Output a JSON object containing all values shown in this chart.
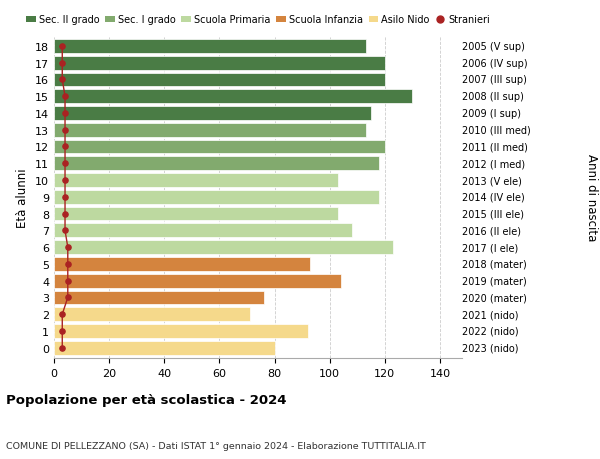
{
  "ages": [
    18,
    17,
    16,
    15,
    14,
    13,
    12,
    11,
    10,
    9,
    8,
    7,
    6,
    5,
    4,
    3,
    2,
    1,
    0
  ],
  "years": [
    "2005 (V sup)",
    "2006 (IV sup)",
    "2007 (III sup)",
    "2008 (II sup)",
    "2009 (I sup)",
    "2010 (III med)",
    "2011 (II med)",
    "2012 (I med)",
    "2013 (V ele)",
    "2014 (IV ele)",
    "2015 (III ele)",
    "2016 (II ele)",
    "2017 (I ele)",
    "2018 (mater)",
    "2019 (mater)",
    "2020 (mater)",
    "2021 (nido)",
    "2022 (nido)",
    "2023 (nido)"
  ],
  "values": [
    113,
    120,
    120,
    130,
    115,
    113,
    120,
    118,
    103,
    118,
    103,
    108,
    123,
    93,
    104,
    76,
    71,
    92,
    80
  ],
  "stranieri": [
    3,
    3,
    3,
    4,
    4,
    4,
    4,
    4,
    4,
    4,
    4,
    4,
    5,
    5,
    5,
    5,
    3,
    3,
    3
  ],
  "colors": {
    "sec2": "#4a7c45",
    "sec1": "#82aa6e",
    "primaria": "#bdd9a0",
    "infanzia": "#d4843e",
    "nido": "#f5d98b",
    "stranieri": "#aa2222"
  },
  "bar_colors": [
    "#4a7c45",
    "#4a7c45",
    "#4a7c45",
    "#4a7c45",
    "#4a7c45",
    "#82aa6e",
    "#82aa6e",
    "#82aa6e",
    "#bdd9a0",
    "#bdd9a0",
    "#bdd9a0",
    "#bdd9a0",
    "#bdd9a0",
    "#d4843e",
    "#d4843e",
    "#d4843e",
    "#f5d98b",
    "#f5d98b",
    "#f5d98b"
  ],
  "legend_labels": [
    "Sec. II grado",
    "Sec. I grado",
    "Scuola Primaria",
    "Scuola Infanzia",
    "Asilo Nido",
    "Stranieri"
  ],
  "legend_colors": [
    "#4a7c45",
    "#82aa6e",
    "#bdd9a0",
    "#d4843e",
    "#f5d98b",
    "#aa2222"
  ],
  "ylabel": "Età alunni",
  "ylabel_right": "Anni di nascita",
  "title": "Popolazione per età scolastica - 2024",
  "subtitle": "COMUNE DI PELLEZZANO (SA) - Dati ISTAT 1° gennaio 2024 - Elaborazione TUTTITALIA.IT",
  "xlim": [
    0,
    148
  ],
  "xticks": [
    0,
    20,
    40,
    60,
    80,
    100,
    120,
    140
  ],
  "background_color": "#ffffff",
  "bar_height": 0.82,
  "grid_color": "#cccccc"
}
